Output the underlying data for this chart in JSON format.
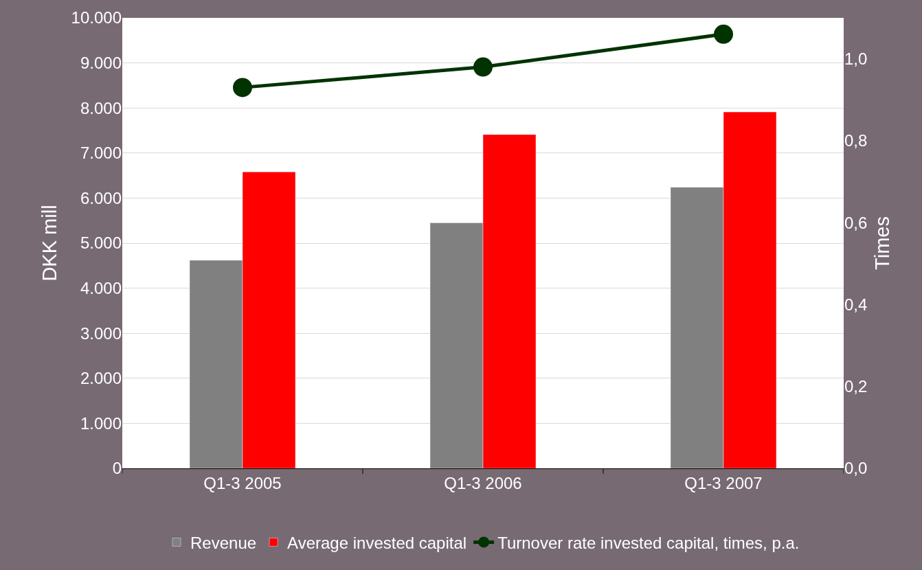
{
  "chart_data": {
    "type": "bar",
    "ylabel": "DKK mill",
    "y2label": "Times",
    "categories": [
      "Q1-3 2005",
      "Q1-3 2006",
      "Q1-3 2007"
    ],
    "series": [
      {
        "name": "Revenue",
        "color": "#808080",
        "values": [
          4620,
          5450,
          6240
        ]
      },
      {
        "name": "Average invested capital",
        "color": "#ff0000",
        "values": [
          6580,
          7410,
          7910
        ]
      },
      {
        "name": "Turnover rate invested capital, times, p.a.",
        "type": "line",
        "axis": "y2",
        "color": "#003300",
        "marker": "circle",
        "values": [
          0.93,
          0.98,
          1.06
        ]
      }
    ],
    "ylim": [
      0,
      10000
    ],
    "yticks": [
      {
        "value": 0,
        "label": "0"
      },
      {
        "value": 1000,
        "label": "1.000"
      },
      {
        "value": 2000,
        "label": "2.000"
      },
      {
        "value": 3000,
        "label": "3.000"
      },
      {
        "value": 4000,
        "label": "4.000"
      },
      {
        "value": 5000,
        "label": "5.000"
      },
      {
        "value": 6000,
        "label": "6.000"
      },
      {
        "value": 7000,
        "label": "7.000"
      },
      {
        "value": 8000,
        "label": "8.000"
      },
      {
        "value": 9000,
        "label": "9.000"
      },
      {
        "value": 10000,
        "label": "10.000"
      }
    ],
    "y2lim": [
      0,
      1.1
    ],
    "y2ticks": [
      {
        "value": 0,
        "label": "0,0"
      },
      {
        "value": 0.2,
        "label": "0,2"
      },
      {
        "value": 0.4,
        "label": "0,4"
      },
      {
        "value": 0.6,
        "label": "0,6"
      },
      {
        "value": 0.8,
        "label": "0,8"
      },
      {
        "value": 1.0,
        "label": "1,0"
      }
    ],
    "grid": "y",
    "legend": "bottom"
  }
}
